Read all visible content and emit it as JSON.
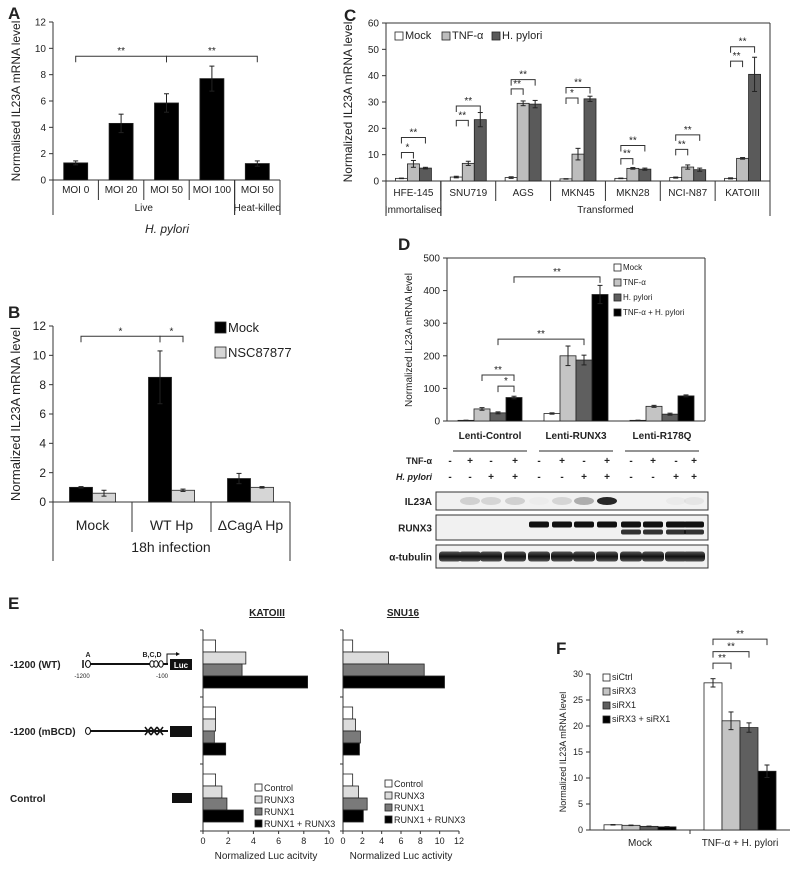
{
  "panel_labels": [
    "A",
    "B",
    "C",
    "D",
    "E",
    "F"
  ],
  "chart_data": [
    {
      "type": "bar",
      "ylabel": "Normalised IL23A mRNA level",
      "xlabel": "H. pylori",
      "ylim": [
        0,
        12
      ],
      "yticks": [
        "0",
        "2",
        "4",
        "6",
        "8",
        "10",
        "12"
      ],
      "categories": [
        "MOI 0",
        "MOI 20",
        "MOI 50",
        "MOI 100",
        "MOI 50"
      ],
      "groups": [
        {
          "label": "Live",
          "span": [
            0,
            3
          ]
        },
        {
          "label": "Heat-killed",
          "span": [
            4,
            4
          ]
        }
      ],
      "series": [
        {
          "values": [
            1.3,
            4.3,
            5.85,
            7.7,
            1.25
          ],
          "errors": [
            0.15,
            0.7,
            0.7,
            0.95,
            0.2
          ],
          "color": "#000000"
        }
      ],
      "brackets": [
        {
          "from": [
            0,
            0
          ],
          "to": [
            2,
            0
          ],
          "y": 9.4,
          "label": "**"
        },
        {
          "from": [
            2,
            0
          ],
          "to": [
            4,
            0
          ],
          "y": 9.4,
          "label": "**"
        }
      ]
    },
    {
      "type": "bar",
      "ylabel": "Normalized  IL23A mRNA level",
      "xlabel": "18h infection",
      "ylim": [
        0,
        12
      ],
      "yticks": [
        "0",
        "2",
        "4",
        "6",
        "8",
        "10",
        "12"
      ],
      "categories": [
        "Mock",
        "WT Hp",
        "ΔCagA Hp"
      ],
      "legend": "top-right",
      "series": [
        {
          "name": "Mock",
          "values": [
            1.0,
            8.5,
            1.6
          ],
          "errors": [
            0.05,
            1.8,
            0.35
          ],
          "color": "#000000"
        },
        {
          "name": "NSC87877",
          "values": [
            0.6,
            0.8,
            1.0
          ],
          "errors": [
            0.2,
            0.08,
            0.05
          ],
          "color": "#d6d6d6"
        }
      ],
      "brackets": [
        {
          "from": [
            0,
            0
          ],
          "to": [
            1,
            0
          ],
          "y": 11.3,
          "label": "*"
        },
        {
          "from": [
            1,
            0
          ],
          "to": [
            1,
            1
          ],
          "y": 11.3,
          "label": "*"
        }
      ]
    },
    {
      "type": "bar",
      "ylabel": "Normalized IL23A mRNA level",
      "ylim": [
        0,
        60
      ],
      "yticks": [
        "0",
        "10",
        "20",
        "30",
        "40",
        "50",
        "60"
      ],
      "categories": [
        "HFE-145",
        "SNU719",
        "AGS",
        "MKN45",
        "MKN28",
        "NCI-N87",
        "KATOIII"
      ],
      "groups": [
        {
          "label": "Immortalised",
          "span": [
            0,
            0
          ]
        },
        {
          "label": "Transformed",
          "span": [
            1,
            6
          ]
        }
      ],
      "legend": "top-left",
      "series": [
        {
          "name": "Mock",
          "values": [
            1.0,
            1.5,
            1.3,
            0.8,
            1.0,
            1.3,
            1.0
          ],
          "errors": [
            0.1,
            0.3,
            0.3,
            0.1,
            0.1,
            0.2,
            0.2
          ],
          "color": "#ffffff"
        },
        {
          "name": "TNF-α",
          "values": [
            6.5,
            6.7,
            29.5,
            10.2,
            4.8,
            5.3,
            8.6
          ],
          "errors": [
            1.3,
            0.8,
            0.9,
            2.2,
            0.3,
            0.8,
            0.3
          ],
          "color": "#bdbdbd"
        },
        {
          "name": "H. pylori",
          "values": [
            4.9,
            23.3,
            29.2,
            31.2,
            4.5,
            4.3,
            40.5
          ],
          "errors": [
            0.3,
            2.7,
            1.4,
            1.0,
            0.4,
            0.6,
            6.5
          ],
          "color": "#5a5a5a"
        }
      ],
      "brackets": [
        {
          "from": [
            0,
            0
          ],
          "to": [
            0,
            1
          ],
          "y": 10.8,
          "label": "*"
        },
        {
          "from": [
            0,
            0
          ],
          "to": [
            0,
            2
          ],
          "y": 16.5,
          "label": "**"
        },
        {
          "from": [
            1,
            0
          ],
          "to": [
            1,
            1
          ],
          "y": 23.0,
          "label": "**"
        },
        {
          "from": [
            1,
            0
          ],
          "to": [
            1,
            2
          ],
          "y": 28.5,
          "label": "**"
        },
        {
          "from": [
            2,
            0
          ],
          "to": [
            2,
            1
          ],
          "y": 35.0,
          "label": "**"
        },
        {
          "from": [
            2,
            0
          ],
          "to": [
            2,
            2
          ],
          "y": 38.5,
          "label": "**"
        },
        {
          "from": [
            3,
            0
          ],
          "to": [
            3,
            1
          ],
          "y": 31.5,
          "label": "*"
        },
        {
          "from": [
            3,
            0
          ],
          "to": [
            3,
            2
          ],
          "y": 35.5,
          "label": "**"
        },
        {
          "from": [
            4,
            0
          ],
          "to": [
            4,
            1
          ],
          "y": 8.5,
          "label": "**"
        },
        {
          "from": [
            4,
            0
          ],
          "to": [
            4,
            2
          ],
          "y": 13.5,
          "label": "**"
        },
        {
          "from": [
            5,
            0
          ],
          "to": [
            5,
            1
          ],
          "y": 12.0,
          "label": "**"
        },
        {
          "from": [
            5,
            0
          ],
          "to": [
            5,
            2
          ],
          "y": 17.5,
          "label": "**"
        },
        {
          "from": [
            6,
            0
          ],
          "to": [
            6,
            1
          ],
          "y": 45.5,
          "label": "**"
        },
        {
          "from": [
            6,
            0
          ],
          "to": [
            6,
            2
          ],
          "y": 51.0,
          "label": "**"
        }
      ]
    },
    {
      "type": "bar",
      "ylabel": "Normalized IL23A mRNA level",
      "ylim": [
        0,
        500
      ],
      "yticks": [
        "0",
        "100",
        "200",
        "300",
        "400",
        "500"
      ],
      "categories": [
        "Lenti-Control",
        "Lenti-RUNX3",
        "Lenti-R178Q"
      ],
      "legend": "top-right",
      "series": [
        {
          "name": "Mock",
          "values": [
            2,
            23,
            2
          ],
          "errors": [
            0.5,
            2,
            0.5
          ],
          "color": "#ffffff"
        },
        {
          "name": "TNF-α",
          "values": [
            37,
            200,
            45
          ],
          "errors": [
            4,
            30,
            3
          ],
          "color": "#c4c4c4"
        },
        {
          "name": "H. pylori",
          "values": [
            25,
            187,
            21
          ],
          "errors": [
            3,
            15,
            3
          ],
          "color": "#5f5f5f"
        },
        {
          "name": "TNF-α + H. pylori",
          "values": [
            72,
            388,
            77
          ],
          "errors": [
            4,
            28,
            3
          ],
          "color": "#000000"
        }
      ],
      "brackets": [
        {
          "from": [
            0,
            1
          ],
          "to": [
            0,
            3
          ],
          "y": 141,
          "label": "**"
        },
        {
          "from": [
            0,
            2
          ],
          "to": [
            0,
            3
          ],
          "y": 107,
          "label": "*"
        },
        {
          "from": [
            0,
            2
          ],
          "to": [
            1,
            2
          ],
          "y": 251,
          "label": "**"
        },
        {
          "from": [
            0,
            3
          ],
          "to": [
            1,
            3
          ],
          "y": 442,
          "label": "**"
        }
      ]
    },
    {
      "type": "bar",
      "orientation": "horizontal",
      "title": "KATOIII",
      "xlabel": "Normalized  Luc acitvity",
      "xlim": [
        0,
        10
      ],
      "xticks": [
        "0",
        "2",
        "4",
        "6",
        "8",
        "10"
      ],
      "categories": [
        "-1200 (WT)",
        "-1200 (mBCD)",
        "Control"
      ],
      "legend": "bottom-right",
      "series": [
        {
          "name": "Control",
          "values": [
            1.0,
            1.0,
            1.0
          ],
          "color": "#ffffff"
        },
        {
          "name": "RUNX3",
          "values": [
            3.4,
            1.0,
            1.5
          ],
          "color": "#dcdcdc"
        },
        {
          "name": "RUNX1",
          "values": [
            3.1,
            0.9,
            1.9
          ],
          "color": "#7a7a7a"
        },
        {
          "name": "RUNX1 + RUNX3",
          "values": [
            8.3,
            1.8,
            3.2
          ],
          "color": "#000000"
        }
      ]
    },
    {
      "type": "bar",
      "orientation": "horizontal",
      "title": "SNU16",
      "xlabel": "Normalized  Luc activity",
      "xlim": [
        0,
        12
      ],
      "xticks": [
        "0",
        "2",
        "4",
        "6",
        "8",
        "10",
        "12"
      ],
      "legend": "bottom-right",
      "series": [
        {
          "name": "Control",
          "values": [
            1.0,
            1.0,
            1.0
          ],
          "color": "#ffffff"
        },
        {
          "name": "RUNX3",
          "values": [
            4.7,
            1.3,
            1.6
          ],
          "color": "#dcdcdc"
        },
        {
          "name": "RUNX1",
          "values": [
            8.4,
            1.8,
            2.5
          ],
          "color": "#7a7a7a"
        },
        {
          "name": "RUNX1 + RUNX3",
          "values": [
            10.5,
            1.7,
            2.1
          ],
          "color": "#000000"
        }
      ]
    },
    {
      "type": "bar",
      "ylabel": "Normalized IL23A mRNA level",
      "ylim": [
        0,
        30
      ],
      "yticks": [
        "0",
        "5",
        "10",
        "15",
        "20",
        "25",
        "30"
      ],
      "categories": [
        "Mock",
        "TNF-α + H. pylori"
      ],
      "legend": "top-left",
      "series": [
        {
          "name": "siCtrl",
          "values": [
            1.0,
            28.3
          ],
          "errors": [
            0.05,
            0.8
          ],
          "color": "#ffffff"
        },
        {
          "name": "siRX3",
          "values": [
            0.9,
            21.0
          ],
          "errors": [
            0.05,
            1.7
          ],
          "color": "#c4c4c4"
        },
        {
          "name": "siRX1",
          "values": [
            0.7,
            19.7
          ],
          "errors": [
            0.05,
            0.9
          ],
          "color": "#5f5f5f"
        },
        {
          "name": "siRX3 + siRX1",
          "values": [
            0.6,
            11.3
          ],
          "errors": [
            0.05,
            1.2
          ],
          "color": "#000000"
        }
      ],
      "brackets": [
        {
          "from": [
            1,
            0
          ],
          "to": [
            1,
            1
          ],
          "y": 32.1,
          "label": "**"
        },
        {
          "from": [
            1,
            0
          ],
          "to": [
            1,
            2
          ],
          "y": 34.3,
          "label": "**"
        },
        {
          "from": [
            1,
            0
          ],
          "to": [
            1,
            3
          ],
          "y": 36.7,
          "label": "**"
        }
      ]
    }
  ],
  "blot": {
    "treatments": [
      {
        "label": "TNF-α",
        "signs": [
          "-",
          "+",
          "-",
          "+",
          "-",
          "+",
          "-",
          "+",
          "-",
          "+",
          "-",
          "+"
        ]
      },
      {
        "label": "H. pylori",
        "signs": [
          "-",
          "-",
          "+",
          "+",
          "-",
          "-",
          "+",
          "+",
          "-",
          "-",
          "+",
          "+"
        ]
      }
    ],
    "bands": [
      {
        "label": "IL23A",
        "intensity": [
          0.0,
          0.15,
          0.12,
          0.15,
          0.02,
          0.12,
          0.3,
          0.9,
          0.0,
          0.0,
          0.03,
          0.05
        ]
      },
      {
        "label": "RUNX3",
        "intensity": [
          0,
          0,
          0,
          0,
          1,
          1,
          1,
          1,
          1,
          1,
          1,
          1
        ]
      },
      {
        "label": "α-tubulin",
        "intensity": [
          1,
          1,
          1,
          1,
          1,
          1,
          1,
          1,
          1,
          1,
          1,
          1
        ]
      }
    ]
  },
  "promoter_diagram": {
    "site_a": "A",
    "sites_bcd": "B,C,D",
    "pos_start": "-1200",
    "pos_end": "-100",
    "reporter": "Luc"
  }
}
